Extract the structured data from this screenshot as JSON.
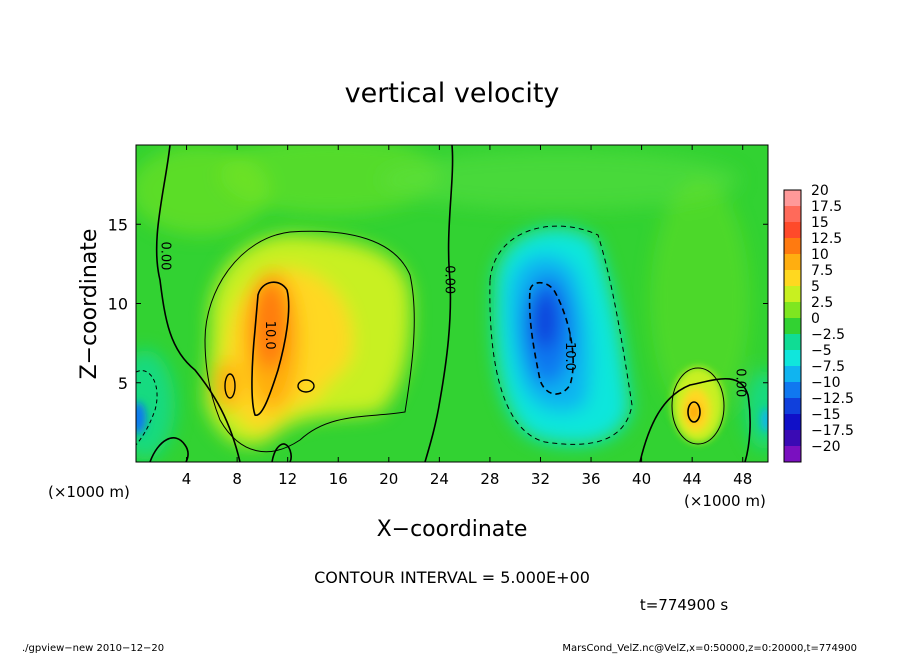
{
  "chart_data": {
    "type": "heatmap",
    "title": "vertical velocity",
    "xlabel": "X−coordinate",
    "ylabel": "Z−coordinate",
    "x_unit_left": "(×1000 m)",
    "x_unit_right": "(×1000 m)",
    "xlim": [
      0,
      50
    ],
    "ylim": [
      0,
      20
    ],
    "x_ticks": [
      4,
      8,
      12,
      16,
      20,
      24,
      28,
      32,
      36,
      40,
      44,
      48
    ],
    "y_ticks": [
      5,
      10,
      15
    ],
    "colorbar": {
      "levels": [
        20,
        17.5,
        15,
        12.5,
        10,
        7.5,
        5,
        2.5,
        0,
        -2.5,
        -5,
        -7.5,
        -10,
        -12.5,
        -15,
        -17.5,
        -20
      ],
      "labels": [
        "20",
        "17.5",
        "15",
        "12.5",
        "10",
        "7.5",
        "5",
        "2.5",
        "0",
        "−2.5",
        "−5",
        "−7.5",
        "−10",
        "−12.5",
        "−15",
        "−17.5",
        "−20"
      ],
      "colors": [
        "#ff9999",
        "#ff6a5a",
        "#ff4a2a",
        "#ff7a10",
        "#ffae10",
        "#ffd820",
        "#c8f020",
        "#7ee620",
        "#32d232",
        "#10dc94",
        "#10e6dc",
        "#10b4f0",
        "#1078f0",
        "#1040dc",
        "#1010c8",
        "#3a0ab4",
        "#7a10c0"
      ]
    },
    "contour_labels": [
      {
        "text": "0.00",
        "x": 2.0,
        "z": 13.0
      },
      {
        "text": "10.0",
        "x": 10.3,
        "z": 8.0
      },
      {
        "text": "0.00",
        "x": 24.5,
        "z": 11.5
      },
      {
        "text": "−10.0",
        "x": 34.0,
        "z": 7.0
      },
      {
        "text": "0.00",
        "x": 47.5,
        "z": 5.0
      }
    ],
    "features": [
      {
        "sign": "positive",
        "x": 10.5,
        "z": 9.0,
        "peak": 12.5
      },
      {
        "sign": "negative",
        "x": 32.5,
        "z": 8.0,
        "peak": -12.5
      },
      {
        "sign": "positive",
        "x": 44.0,
        "z": 3.5,
        "peak": 7.5
      }
    ],
    "contour_interval_text": "CONTOUR INTERVAL = 5.000E+00",
    "time_text": "t=774900 s"
  },
  "footer": {
    "left": "./gpview−new  2010−12−20",
    "right": "MarsCond_VelZ.nc@VelZ,x=0:50000,z=0:20000,t=774900"
  }
}
